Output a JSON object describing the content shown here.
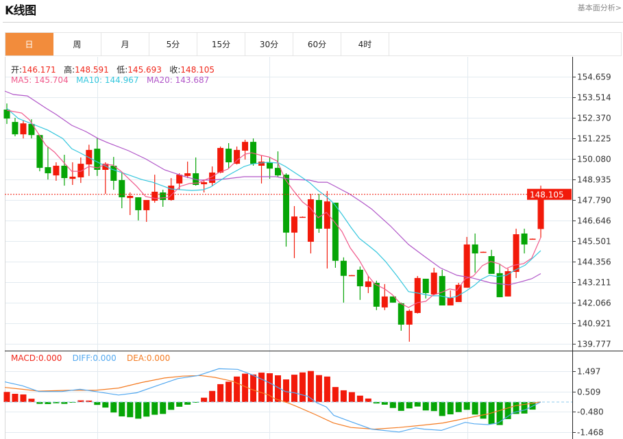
{
  "header": {
    "title": "K线图",
    "link": "基本面分析>"
  },
  "tabs": [
    {
      "label": "日",
      "active": true
    },
    {
      "label": "周"
    },
    {
      "label": "月"
    },
    {
      "label": "5分"
    },
    {
      "label": "15分"
    },
    {
      "label": "30分"
    },
    {
      "label": "60分"
    },
    {
      "label": "4时"
    }
  ],
  "info": {
    "open_label": "开:",
    "open": "146.171",
    "high_label": "高:",
    "high": "148.591",
    "low_label": "低:",
    "low": "145.693",
    "close_label": "收:",
    "close": "148.105"
  },
  "ma_legend": {
    "ma5_label": "MA5:",
    "ma5": "145.704",
    "ma10_label": "MA10:",
    "ma10": "144.967",
    "ma20_label": "MA20:",
    "ma20": "143.687"
  },
  "macd_legend": {
    "macd_label": "MACD:",
    "macd": "0.000",
    "diff_label": "DIFF:",
    "diff": "0.000",
    "dea_label": "DEA:",
    "dea": "0.000"
  },
  "colors": {
    "up": "#f21a0a",
    "down": "#06a506",
    "ma5": "#f0588a",
    "ma10": "#33c6dd",
    "ma20": "#b055c8",
    "diff": "#52a8f0",
    "dea": "#f47a20",
    "tab_active": "#f28c3c",
    "grid": "#e2eaf0"
  },
  "chart_data": {
    "type": "candlestick",
    "price_range": [
      139.39,
      155.77
    ],
    "price_ticks": [
      "154.659",
      "153.514",
      "152.370",
      "151.225",
      "150.080",
      "148.935",
      "147.790",
      "146.646",
      "145.501",
      "144.356",
      "143.211",
      "142.066",
      "140.921",
      "139.777"
    ],
    "current_price": "148.105",
    "candles_ohlc": [
      [
        152.83,
        153.17,
        152.03,
        152.33
      ],
      [
        152.14,
        152.37,
        151.34,
        151.45
      ],
      [
        151.45,
        152.22,
        151.22,
        152.06
      ],
      [
        152.03,
        152.29,
        151.22,
        151.41
      ],
      [
        151.41,
        151.41,
        149.39,
        149.58
      ],
      [
        149.62,
        150.73,
        148.93,
        149.28
      ],
      [
        149.16,
        149.89,
        148.86,
        149.7
      ],
      [
        149.7,
        150.31,
        148.59,
        149.01
      ],
      [
        148.97,
        149.89,
        148.63,
        149.09
      ],
      [
        149.05,
        150.16,
        148.74,
        149.81
      ],
      [
        149.77,
        150.87,
        149.13,
        150.58
      ],
      [
        150.65,
        151.26,
        149.13,
        149.47
      ],
      [
        149.47,
        149.89,
        148.13,
        149.81
      ],
      [
        149.7,
        150.19,
        148.36,
        148.86
      ],
      [
        148.9,
        149.32,
        147.33,
        147.94
      ],
      [
        147.9,
        148.21,
        146.95,
        148.02
      ],
      [
        147.94,
        147.94,
        146.65,
        147.22
      ],
      [
        147.22,
        147.79,
        146.57,
        147.79
      ],
      [
        147.75,
        149.2,
        147.64,
        148.25
      ],
      [
        148.21,
        148.36,
        147.41,
        147.79
      ],
      [
        147.79,
        149.01,
        147.75,
        148.59
      ],
      [
        148.71,
        149.28,
        148.36,
        149.2
      ],
      [
        149.13,
        149.93,
        149.01,
        149.28
      ],
      [
        149.28,
        150.16,
        148.59,
        148.63
      ],
      [
        148.67,
        148.93,
        148.21,
        148.78
      ],
      [
        148.74,
        149.66,
        148.55,
        149.32
      ],
      [
        149.32,
        150.77,
        149.28,
        150.69
      ],
      [
        150.65,
        150.96,
        149.54,
        149.89
      ],
      [
        149.81,
        150.77,
        149.77,
        150.58
      ],
      [
        150.54,
        151.15,
        150.04,
        151.03
      ],
      [
        151.03,
        151.22,
        149.7,
        149.81
      ],
      [
        149.7,
        150.27,
        148.71,
        149.93
      ],
      [
        149.89,
        150.16,
        148.97,
        149.54
      ],
      [
        149.58,
        150.5,
        149.05,
        149.16
      ],
      [
        149.2,
        149.28,
        145.19,
        145.97
      ],
      [
        145.97,
        147.45,
        144.55,
        146.87
      ],
      [
        146.84,
        146.87,
        146.83,
        146.85
      ],
      [
        145.46,
        148.13,
        144.81,
        147.83
      ],
      [
        147.79,
        148.13,
        145.96,
        146.19
      ],
      [
        146.19,
        148.29,
        143.97,
        147.71
      ],
      [
        147.64,
        147.64,
        144.01,
        144.4
      ],
      [
        144.4,
        144.59,
        142.07,
        143.56
      ],
      [
        143.59,
        143.61,
        143.58,
        143.6
      ],
      [
        143.9,
        144.08,
        142.22,
        142.98
      ],
      [
        142.94,
        143.55,
        142.6,
        143.25
      ],
      [
        143.17,
        143.29,
        141.65,
        141.84
      ],
      [
        141.8,
        143.1,
        141.65,
        142.41
      ],
      [
        142.41,
        142.41,
        142.07,
        142.07
      ],
      [
        142.03,
        142.07,
        140.5,
        140.84
      ],
      [
        140.84,
        141.69,
        139.89,
        141.61
      ],
      [
        141.49,
        143.55,
        141.46,
        143.44
      ],
      [
        143.4,
        143.4,
        142.3,
        142.6
      ],
      [
        142.52,
        144.01,
        142.49,
        143.74
      ],
      [
        143.55,
        143.9,
        141.91,
        141.91
      ],
      [
        141.91,
        142.75,
        141.91,
        142.33
      ],
      [
        142.1,
        143.17,
        142.1,
        143.06
      ],
      [
        142.9,
        145.73,
        142.9,
        145.31
      ],
      [
        145.31,
        145.92,
        143.74,
        144.81
      ],
      [
        144.89,
        144.91,
        144.88,
        144.9
      ],
      [
        144.66,
        145.01,
        143.67,
        143.67
      ],
      [
        143.71,
        144.24,
        142.37,
        142.37
      ],
      [
        142.41,
        143.97,
        142.41,
        143.82
      ],
      [
        143.78,
        146.19,
        143.44,
        145.88
      ],
      [
        145.92,
        146.19,
        144.81,
        145.31
      ],
      [
        145.62,
        145.64,
        145.61,
        145.63
      ],
      [
        146.171,
        148.591,
        145.693,
        148.105
      ]
    ],
    "ma5": [
      [
        0,
        152.79
      ],
      [
        1.8,
        152.64
      ],
      [
        2.75,
        152.26
      ],
      [
        4.75,
        150.84
      ],
      [
        5.8,
        150.46
      ],
      [
        7.9,
        149.39
      ],
      [
        9,
        149.39
      ],
      [
        10,
        149.66
      ],
      [
        11.1,
        149.58
      ],
      [
        11.9,
        149.77
      ],
      [
        12.9,
        149.74
      ],
      [
        13.9,
        149.39
      ],
      [
        15.8,
        148.55
      ],
      [
        16.9,
        147.98
      ],
      [
        18.1,
        147.87
      ],
      [
        19.75,
        147.94
      ],
      [
        21.1,
        148.55
      ],
      [
        22.25,
        148.71
      ],
      [
        23.3,
        148.74
      ],
      [
        25,
        149.09
      ],
      [
        25.8,
        149.32
      ],
      [
        26.9,
        149.51
      ],
      [
        28.1,
        150.04
      ],
      [
        29,
        150.35
      ],
      [
        29.8,
        150.42
      ],
      [
        31,
        150.27
      ],
      [
        31.9,
        150.19
      ],
      [
        32.9,
        149.96
      ],
      [
        33.9,
        148.93
      ],
      [
        34.8,
        148.36
      ],
      [
        36,
        147.68
      ],
      [
        36.9,
        147.37
      ],
      [
        37.9,
        146.8
      ],
      [
        38.9,
        147.1
      ],
      [
        39.8,
        146.61
      ],
      [
        40.8,
        146.03
      ],
      [
        41.8,
        145.12
      ],
      [
        42.9,
        144.43
      ],
      [
        44,
        143.55
      ],
      [
        44.8,
        143.1
      ],
      [
        46,
        142.83
      ],
      [
        46.9,
        142.52
      ],
      [
        47.9,
        142.03
      ],
      [
        48.9,
        141.8
      ],
      [
        50,
        142.07
      ],
      [
        51,
        142.14
      ],
      [
        51.9,
        142.49
      ],
      [
        52.9,
        142.64
      ],
      [
        53.9,
        142.83
      ],
      [
        54.8,
        142.75
      ],
      [
        55.8,
        143.4
      ],
      [
        56.8,
        143.55
      ],
      [
        57.9,
        144.13
      ],
      [
        58.9,
        144.36
      ],
      [
        59.9,
        144.24
      ],
      [
        60.8,
        143.97
      ],
      [
        61.8,
        144.16
      ],
      [
        62.9,
        144.24
      ],
      [
        63.9,
        144.55
      ],
      [
        65,
        145.704
      ]
    ],
    "ma10": [
      [
        0,
        152.9
      ],
      [
        1.4,
        152.33
      ],
      [
        3.3,
        151.99
      ],
      [
        5,
        151.68
      ],
      [
        6.8,
        151.22
      ],
      [
        7.9,
        150.65
      ],
      [
        8.9,
        150.42
      ],
      [
        10.8,
        149.96
      ],
      [
        12.75,
        149.51
      ],
      [
        14.75,
        149.2
      ],
      [
        16.4,
        148.93
      ],
      [
        17.75,
        148.78
      ],
      [
        20,
        148.4
      ],
      [
        22.5,
        148.32
      ],
      [
        23.9,
        148.36
      ],
      [
        24.8,
        148.51
      ],
      [
        25.8,
        148.82
      ],
      [
        26.8,
        149.13
      ],
      [
        28.9,
        149.66
      ],
      [
        30,
        149.81
      ],
      [
        31.7,
        149.89
      ],
      [
        33.1,
        149.85
      ],
      [
        33.9,
        149.66
      ],
      [
        34.8,
        149.39
      ],
      [
        35.8,
        149.09
      ],
      [
        36.9,
        148.74
      ],
      [
        37.9,
        148.32
      ],
      [
        38.9,
        147.98
      ],
      [
        39.8,
        147.6
      ],
      [
        40.8,
        146.99
      ],
      [
        41.9,
        146.26
      ],
      [
        42.9,
        145.65
      ],
      [
        44.2,
        145.19
      ],
      [
        45,
        144.89
      ],
      [
        46.1,
        144.36
      ],
      [
        47.5,
        143.55
      ],
      [
        48.9,
        142.68
      ],
      [
        50,
        142.6
      ],
      [
        51.7,
        142.45
      ],
      [
        52.75,
        142.45
      ],
      [
        53.9,
        142.33
      ],
      [
        54.75,
        142.41
      ],
      [
        55.8,
        142.68
      ],
      [
        56.9,
        143.02
      ],
      [
        57.75,
        143.36
      ],
      [
        58.75,
        143.59
      ],
      [
        59.75,
        143.52
      ],
      [
        60.8,
        143.59
      ],
      [
        61.8,
        143.86
      ],
      [
        63.1,
        144.16
      ],
      [
        65,
        144.967
      ]
    ],
    "ma20": [
      [
        -0.25,
        153.86
      ],
      [
        0.8,
        153.67
      ],
      [
        2.5,
        153.59
      ],
      [
        4.8,
        152.9
      ],
      [
        6,
        152.56
      ],
      [
        7.9,
        151.95
      ],
      [
        9.6,
        151.61
      ],
      [
        11.1,
        151.22
      ],
      [
        12.25,
        150.99
      ],
      [
        14.8,
        150.54
      ],
      [
        16.9,
        150.08
      ],
      [
        19.2,
        149.47
      ],
      [
        21.7,
        149.09
      ],
      [
        23.3,
        148.9
      ],
      [
        25,
        148.9
      ],
      [
        26.7,
        148.97
      ],
      [
        28.9,
        149.09
      ],
      [
        32.75,
        149.09
      ],
      [
        34.75,
        148.93
      ],
      [
        36.8,
        148.9
      ],
      [
        37.9,
        148.78
      ],
      [
        39,
        148.78
      ],
      [
        39.8,
        148.59
      ],
      [
        41.7,
        148.13
      ],
      [
        43.3,
        147.64
      ],
      [
        44.4,
        147.29
      ],
      [
        46.7,
        146.34
      ],
      [
        48.9,
        145.31
      ],
      [
        50.8,
        144.66
      ],
      [
        52.75,
        144.01
      ],
      [
        54.8,
        143.59
      ],
      [
        56.7,
        143.44
      ],
      [
        58.9,
        143.17
      ],
      [
        61.1,
        143.06
      ],
      [
        62.75,
        143.25
      ],
      [
        63.9,
        143.4
      ],
      [
        65,
        143.687
      ]
    ],
    "macd": {
      "range": [
        -1.8,
        2.5
      ],
      "ticks": [
        "1.497",
        "0.509",
        "-0.480",
        "-1.468"
      ],
      "histogram": [
        0.49,
        0.4,
        0.37,
        0.16,
        -0.09,
        -0.1,
        -0.06,
        -0.09,
        -0.02,
        0.08,
        0.07,
        -0.14,
        -0.27,
        -0.51,
        -0.7,
        -0.74,
        -0.81,
        -0.71,
        -0.62,
        -0.58,
        -0.38,
        -0.23,
        -0.13,
        -0.03,
        0.21,
        0.54,
        0.87,
        0.99,
        1.24,
        1.38,
        1.34,
        1.43,
        1.4,
        1.3,
        1.1,
        1.33,
        1.44,
        1.51,
        1.31,
        1.24,
        0.73,
        0.57,
        0.48,
        0.31,
        0.17,
        -0.07,
        -0.13,
        -0.29,
        -0.43,
        -0.31,
        -0.22,
        -0.41,
        -0.44,
        -0.68,
        -0.6,
        -0.49,
        -0.38,
        -0.61,
        -0.81,
        -1.07,
        -1.12,
        -0.83,
        -0.58,
        -0.56,
        -0.37,
        0
      ],
      "diff": [
        [
          -0.25,
          0.98
        ],
        [
          1.9,
          0.79
        ],
        [
          3.9,
          0.51
        ],
        [
          6.7,
          0.51
        ],
        [
          8.9,
          0.62
        ],
        [
          10.8,
          0.51
        ],
        [
          13.6,
          0.34
        ],
        [
          15.8,
          0.45
        ],
        [
          18.6,
          0.84
        ],
        [
          20.8,
          1.14
        ],
        [
          23.3,
          1.29
        ],
        [
          25.8,
          1.62
        ],
        [
          28.1,
          1.59
        ],
        [
          29.75,
          1.34
        ],
        [
          31.9,
          0.95
        ],
        [
          33.9,
          0.51
        ],
        [
          35,
          0.45
        ],
        [
          36.7,
          0.27
        ],
        [
          37.75,
          -0.04
        ],
        [
          38.9,
          -0.24
        ],
        [
          39.8,
          -0.65
        ],
        [
          41.7,
          -0.93
        ],
        [
          44.4,
          -1.32
        ],
        [
          47.75,
          -1.46
        ],
        [
          49.75,
          -1.26
        ],
        [
          50.8,
          -1.32
        ],
        [
          52.9,
          -1.38
        ],
        [
          55.8,
          -0.99
        ],
        [
          56.9,
          -1.06
        ],
        [
          58.6,
          -1.1
        ],
        [
          59.8,
          -1.02
        ],
        [
          61.7,
          -0.51
        ],
        [
          63.1,
          -0.38
        ],
        [
          65,
          0
        ]
      ],
      "dea": [
        [
          -0.25,
          0.71
        ],
        [
          1.9,
          0.62
        ],
        [
          3.9,
          0.53
        ],
        [
          7.5,
          0.57
        ],
        [
          10.8,
          0.57
        ],
        [
          13.6,
          0.68
        ],
        [
          16.4,
          0.95
        ],
        [
          19.2,
          1.17
        ],
        [
          21.4,
          1.26
        ],
        [
          23.6,
          1.29
        ],
        [
          25.3,
          1.2
        ],
        [
          27.5,
          1.01
        ],
        [
          29.75,
          0.62
        ],
        [
          31.9,
          0.34
        ],
        [
          32.5,
          0.18
        ],
        [
          34.2,
          -0.04
        ],
        [
          35.25,
          -0.21
        ],
        [
          37.5,
          -0.6
        ],
        [
          39.75,
          -1.02
        ],
        [
          41.9,
          -1.24
        ],
        [
          44.75,
          -1.32
        ],
        [
          47.75,
          -1.24
        ],
        [
          50.6,
          -1.13
        ],
        [
          53.1,
          -1.02
        ],
        [
          55.8,
          -0.8
        ],
        [
          58.6,
          -0.58
        ],
        [
          60.25,
          -0.38
        ],
        [
          61.9,
          -0.18
        ],
        [
          65,
          0
        ]
      ]
    }
  }
}
